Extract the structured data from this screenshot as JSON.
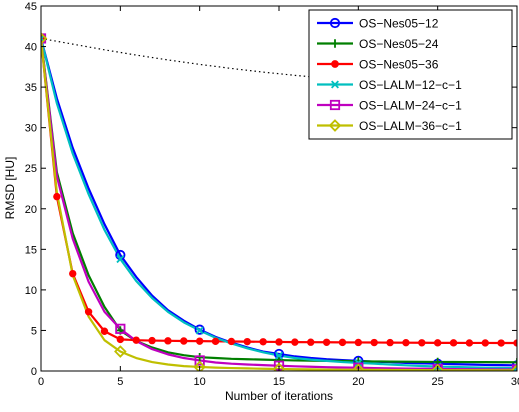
{
  "chart_data": {
    "type": "line",
    "xlabel": "Number of iterations",
    "ylabel": "RMSD [HU]",
    "xlim": [
      0,
      30
    ],
    "ylim": [
      0,
      45
    ],
    "xticks": [
      0,
      5,
      10,
      15,
      20,
      25,
      30
    ],
    "yticks": [
      0,
      5,
      10,
      15,
      20,
      25,
      30,
      35,
      40,
      45
    ],
    "xtick_labels": [
      "0",
      "5",
      "10",
      "15",
      "20",
      "25",
      "30"
    ],
    "ytick_labels": [
      "0",
      "5",
      "10",
      "15",
      "20",
      "25",
      "30",
      "35",
      "40",
      "45"
    ],
    "grid": false,
    "legend_position": "top-right",
    "reference_curve": {
      "style": "dotted",
      "color": "#000000",
      "x": [
        0,
        2,
        4,
        6,
        8,
        10,
        12,
        14,
        16,
        18,
        20
      ],
      "values": [
        41,
        40.3,
        39.6,
        38.95,
        38.35,
        37.8,
        37.3,
        36.85,
        36.45,
        36.1,
        35.8
      ]
    },
    "series": [
      {
        "name": "OS−Nes05−12",
        "color": "#0000ff",
        "marker": "circle",
        "x": [
          0,
          1,
          2,
          3,
          4,
          5,
          6,
          7,
          8,
          9,
          10,
          11,
          12,
          13,
          14,
          15,
          16,
          17,
          18,
          19,
          20,
          21,
          22,
          23,
          24,
          25,
          26,
          27,
          28,
          29,
          30
        ],
        "values": [
          41,
          33.6,
          27.5,
          22.5,
          18.1,
          14.3,
          11.6,
          9.3,
          7.5,
          6.2,
          5.1,
          4.2,
          3.5,
          2.9,
          2.4,
          2.1,
          1.8,
          1.6,
          1.45,
          1.35,
          1.25,
          1.15,
          1.1,
          1.0,
          0.95,
          0.9,
          0.85,
          0.8,
          0.75,
          0.72,
          0.7
        ],
        "marker_x": [
          0,
          5,
          10,
          15,
          20,
          25,
          30
        ]
      },
      {
        "name": "OS−Nes05−24",
        "color": "#007f00",
        "marker": "plus",
        "x": [
          0,
          1,
          2,
          3,
          4,
          5,
          6,
          7,
          8,
          9,
          10,
          11,
          12,
          13,
          14,
          15,
          16,
          17,
          18,
          19,
          20,
          21,
          22,
          23,
          24,
          25,
          26,
          27,
          28,
          29,
          30
        ],
        "values": [
          41,
          24.5,
          17.0,
          11.8,
          7.9,
          5.0,
          3.7,
          2.9,
          2.3,
          1.95,
          1.7,
          1.6,
          1.5,
          1.45,
          1.4,
          1.35,
          1.3,
          1.28,
          1.25,
          1.23,
          1.2,
          1.18,
          1.16,
          1.15,
          1.13,
          1.12,
          1.11,
          1.1,
          1.09,
          1.08,
          1.07
        ],
        "marker_x": [
          0,
          5,
          10,
          15,
          20,
          25,
          30
        ]
      },
      {
        "name": "OS−Nes05−36",
        "color": "#ff0000",
        "marker": "filled-circle",
        "x": [
          0,
          1,
          2,
          3,
          4,
          5,
          6,
          7,
          8,
          9,
          10,
          11,
          12,
          13,
          14,
          15,
          16,
          17,
          18,
          19,
          20,
          21,
          22,
          23,
          24,
          25,
          26,
          27,
          28,
          29,
          30
        ],
        "values": [
          41,
          21.5,
          12.0,
          7.3,
          4.9,
          3.9,
          3.8,
          3.75,
          3.72,
          3.7,
          3.68,
          3.66,
          3.64,
          3.62,
          3.6,
          3.58,
          3.56,
          3.55,
          3.54,
          3.53,
          3.52,
          3.51,
          3.5,
          3.49,
          3.48,
          3.47,
          3.47,
          3.46,
          3.46,
          3.45,
          3.45
        ],
        "marker_x": [
          0,
          1,
          2,
          3,
          4,
          5,
          6,
          7,
          8,
          9,
          10,
          11,
          12,
          13,
          14,
          15,
          16,
          17,
          18,
          19,
          20,
          21,
          22,
          23,
          24,
          25,
          26,
          27,
          28,
          29,
          30
        ]
      },
      {
        "name": "OS−LALM−12−c−1",
        "color": "#00bfbf",
        "marker": "cross",
        "x": [
          0,
          1,
          2,
          3,
          4,
          5,
          6,
          7,
          8,
          9,
          10,
          11,
          12,
          13,
          14,
          15,
          16,
          17,
          18,
          19,
          20,
          21,
          22,
          23,
          24,
          25,
          26,
          27,
          28,
          29,
          30
        ],
        "values": [
          41,
          33.0,
          26.8,
          21.8,
          17.4,
          13.8,
          11.1,
          9.0,
          7.3,
          6.0,
          5.0,
          4.1,
          3.4,
          2.8,
          2.3,
          1.9,
          1.6,
          1.4,
          1.25,
          1.1,
          1.0,
          0.9,
          0.8,
          0.7,
          0.62,
          0.55,
          0.5,
          0.45,
          0.4,
          0.37,
          0.35
        ],
        "marker_x": [
          0,
          5,
          10,
          15,
          20,
          25,
          30
        ]
      },
      {
        "name": "OS−LALM−24−c−1",
        "color": "#bf00bf",
        "marker": "square",
        "x": [
          0,
          1,
          2,
          3,
          4,
          5,
          6,
          7,
          8,
          9,
          10,
          11,
          12,
          13,
          14,
          15,
          16,
          17,
          18,
          19,
          20,
          21,
          22,
          23,
          24,
          25,
          26,
          27,
          28,
          29,
          30
        ],
        "values": [
          41,
          24.0,
          16.3,
          11.0,
          7.3,
          5.2,
          3.7,
          2.7,
          2.05,
          1.6,
          1.3,
          1.05,
          0.9,
          0.8,
          0.72,
          0.65,
          0.58,
          0.52,
          0.47,
          0.43,
          0.4,
          0.36,
          0.33,
          0.3,
          0.28,
          0.26,
          0.24,
          0.22,
          0.2,
          0.19,
          0.18
        ],
        "marker_x": [
          0,
          5,
          10,
          15,
          20,
          25,
          30
        ]
      },
      {
        "name": "OS−LALM−36−c−1",
        "color": "#bfbf00",
        "marker": "diamond",
        "x": [
          0,
          1,
          2,
          3,
          4,
          5,
          6,
          7,
          8,
          9,
          10,
          11,
          12,
          13,
          14,
          15,
          16,
          17,
          18,
          19,
          20,
          21,
          22,
          23,
          24,
          25,
          26,
          27,
          28,
          29,
          30
        ],
        "values": [
          41,
          22.0,
          11.8,
          6.7,
          3.8,
          2.4,
          1.6,
          1.1,
          0.8,
          0.6,
          0.5,
          0.42,
          0.36,
          0.32,
          0.28,
          0.25,
          0.22,
          0.2,
          0.18,
          0.16,
          0.15,
          0.14,
          0.13,
          0.12,
          0.11,
          0.1,
          0.1,
          0.09,
          0.09,
          0.08,
          0.08
        ],
        "marker_x": [
          0,
          5,
          10,
          15,
          20,
          25,
          30
        ]
      }
    ]
  }
}
